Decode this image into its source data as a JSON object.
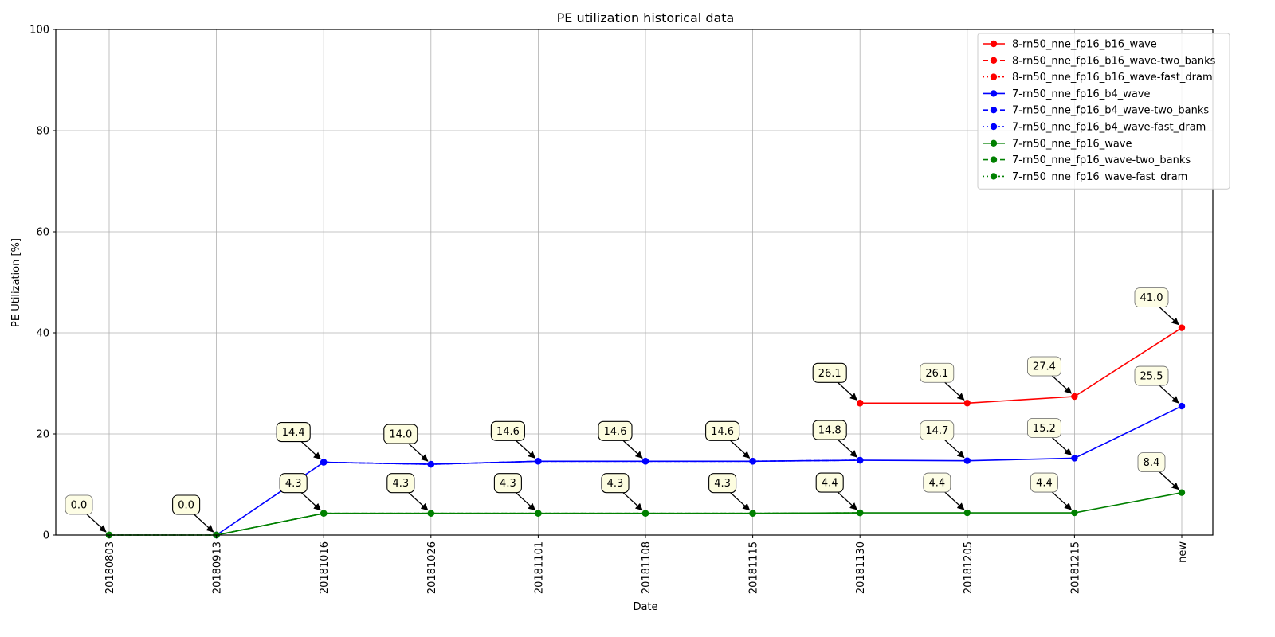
{
  "chart_data": {
    "type": "line",
    "title": "PE utilization historical data",
    "xlabel": "Date",
    "ylabel": "PE Utilization [%]",
    "categories": [
      "20180803",
      "20180913",
      "20181016",
      "20181026",
      "20181101",
      "20181108",
      "20181115",
      "20181130",
      "20181205",
      "20181215",
      "new"
    ],
    "ylim": [
      0,
      100
    ],
    "yticks": [
      0,
      20,
      40,
      60,
      80,
      100
    ],
    "grid": true,
    "legend_position": "top-right",
    "series": [
      {
        "name": "8-rn50_nne_fp16_b16_wave",
        "color": "#ff0000",
        "style": "solid",
        "values": [
          null,
          null,
          null,
          null,
          null,
          null,
          null,
          26.1,
          26.1,
          27.4,
          41.0
        ]
      },
      {
        "name": "8-rn50_nne_fp16_b16_wave-two_banks",
        "color": "#ff0000",
        "style": "dashed",
        "values": [
          null,
          null,
          null,
          null,
          null,
          null,
          null,
          26.1,
          null,
          null,
          null
        ]
      },
      {
        "name": "8-rn50_nne_fp16_b16_wave-fast_dram",
        "color": "#ff0000",
        "style": "dotted",
        "values": [
          null,
          null,
          null,
          null,
          null,
          null,
          null,
          26.1,
          null,
          null,
          null
        ]
      },
      {
        "name": "7-rn50_nne_fp16_b4_wave",
        "color": "#0000ff",
        "style": "solid",
        "values": [
          null,
          0.0,
          14.4,
          14.0,
          14.6,
          14.6,
          14.6,
          14.8,
          14.7,
          15.2,
          25.5
        ]
      },
      {
        "name": "7-rn50_nne_fp16_b4_wave-two_banks",
        "color": "#0000ff",
        "style": "dashed",
        "values": [
          null,
          null,
          14.4,
          14.0,
          14.6,
          14.6,
          14.6,
          14.8,
          null,
          null,
          null
        ]
      },
      {
        "name": "7-rn50_nne_fp16_b4_wave-fast_dram",
        "color": "#0000ff",
        "style": "dotted",
        "values": [
          null,
          null,
          14.4,
          14.0,
          14.6,
          14.6,
          14.6,
          14.8,
          null,
          null,
          null
        ]
      },
      {
        "name": "7-rn50_nne_fp16_wave",
        "color": "#008000",
        "style": "solid",
        "values": [
          0.0,
          0.0,
          4.3,
          4.3,
          4.3,
          4.3,
          4.3,
          4.4,
          4.4,
          4.4,
          8.4
        ]
      },
      {
        "name": "7-rn50_nne_fp16_wave-two_banks",
        "color": "#008000",
        "style": "dashed",
        "values": [
          0.0,
          0.0,
          4.3,
          4.3,
          4.3,
          4.3,
          4.3,
          4.4,
          null,
          null,
          null
        ]
      },
      {
        "name": "7-rn50_nne_fp16_wave-fast_dram",
        "color": "#008000",
        "style": "dotted",
        "values": [
          0.0,
          0.0,
          4.3,
          4.3,
          4.3,
          4.3,
          4.3,
          4.4,
          null,
          null,
          null
        ]
      }
    ],
    "annotations": [
      {
        "category": "20180803",
        "value": 0.0,
        "text": "0.0",
        "emphasis": false
      },
      {
        "category": "20180913",
        "value": 0.0,
        "text": "0.0",
        "emphasis": true
      },
      {
        "category": "20181016",
        "value": 14.4,
        "text": "14.4",
        "emphasis": true
      },
      {
        "category": "20181016",
        "value": 4.3,
        "text": "4.3",
        "emphasis": true
      },
      {
        "category": "20181026",
        "value": 14.0,
        "text": "14.0",
        "emphasis": true
      },
      {
        "category": "20181026",
        "value": 4.3,
        "text": "4.3",
        "emphasis": true
      },
      {
        "category": "20181101",
        "value": 14.6,
        "text": "14.6",
        "emphasis": true
      },
      {
        "category": "20181101",
        "value": 4.3,
        "text": "4.3",
        "emphasis": true
      },
      {
        "category": "20181108",
        "value": 14.6,
        "text": "14.6",
        "emphasis": true
      },
      {
        "category": "20181108",
        "value": 4.3,
        "text": "4.3",
        "emphasis": true
      },
      {
        "category": "20181115",
        "value": 14.6,
        "text": "14.6",
        "emphasis": true
      },
      {
        "category": "20181115",
        "value": 4.3,
        "text": "4.3",
        "emphasis": true
      },
      {
        "category": "20181130",
        "value": 26.1,
        "text": "26.1",
        "emphasis": true
      },
      {
        "category": "20181130",
        "value": 14.8,
        "text": "14.8",
        "emphasis": true
      },
      {
        "category": "20181130",
        "value": 4.4,
        "text": "4.4",
        "emphasis": true
      },
      {
        "category": "20181205",
        "value": 26.1,
        "text": "26.1",
        "emphasis": false
      },
      {
        "category": "20181205",
        "value": 14.7,
        "text": "14.7",
        "emphasis": false
      },
      {
        "category": "20181205",
        "value": 4.4,
        "text": "4.4",
        "emphasis": false
      },
      {
        "category": "20181215",
        "value": 27.4,
        "text": "27.4",
        "emphasis": false
      },
      {
        "category": "20181215",
        "value": 15.2,
        "text": "15.2",
        "emphasis": false
      },
      {
        "category": "20181215",
        "value": 4.4,
        "text": "4.4",
        "emphasis": false
      },
      {
        "category": "new",
        "value": 41.0,
        "text": "41.0",
        "emphasis": false
      },
      {
        "category": "new",
        "value": 25.5,
        "text": "25.5",
        "emphasis": false
      },
      {
        "category": "new",
        "value": 8.4,
        "text": "8.4",
        "emphasis": false
      }
    ]
  }
}
